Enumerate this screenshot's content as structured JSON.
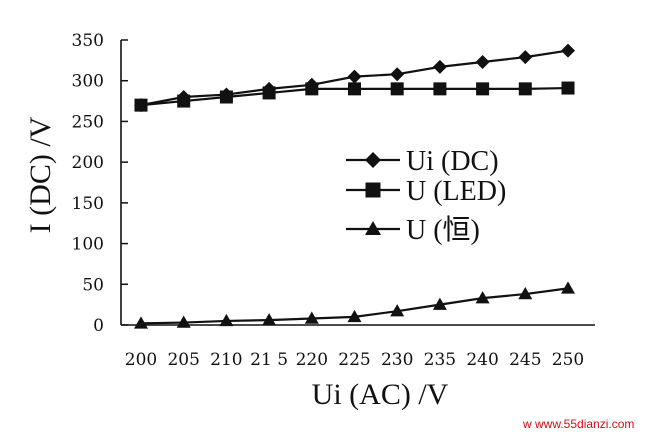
{
  "chart_data": {
    "type": "line",
    "xlabel": "Ui (AC) /V",
    "ylabel": "I (DC) /V",
    "x_ticks": [
      "200",
      "205",
      "210",
      "21 5",
      "220",
      "225",
      "230",
      "235",
      "240",
      "245",
      "250"
    ],
    "y_ticks": [
      "0",
      "50",
      "100",
      "150",
      "200",
      "250",
      "300",
      "350"
    ],
    "xlim": [
      200,
      250
    ],
    "ylim": [
      0,
      350
    ],
    "grid": false,
    "legend_position": "center-right",
    "x": [
      200,
      205,
      210,
      215,
      220,
      225,
      230,
      235,
      240,
      245,
      250
    ],
    "series": [
      {
        "name": "Ui (DC)",
        "marker": "diamond",
        "values": [
          270,
          280,
          283,
          290,
          295,
          305,
          308,
          317,
          323,
          329,
          337
        ]
      },
      {
        "name": "U (LED)",
        "marker": "square",
        "values": [
          270,
          275,
          280,
          285,
          290,
          290,
          290,
          290,
          290,
          290,
          291
        ]
      },
      {
        "name": "U (恒)",
        "marker": "triangle",
        "values": [
          2,
          3,
          5,
          6,
          8,
          10,
          17,
          25,
          33,
          38,
          45
        ]
      }
    ]
  },
  "watermark": "w  www.55dianzi.com",
  "colors": {
    "ink": "#111111",
    "watermark": "#d01010"
  }
}
